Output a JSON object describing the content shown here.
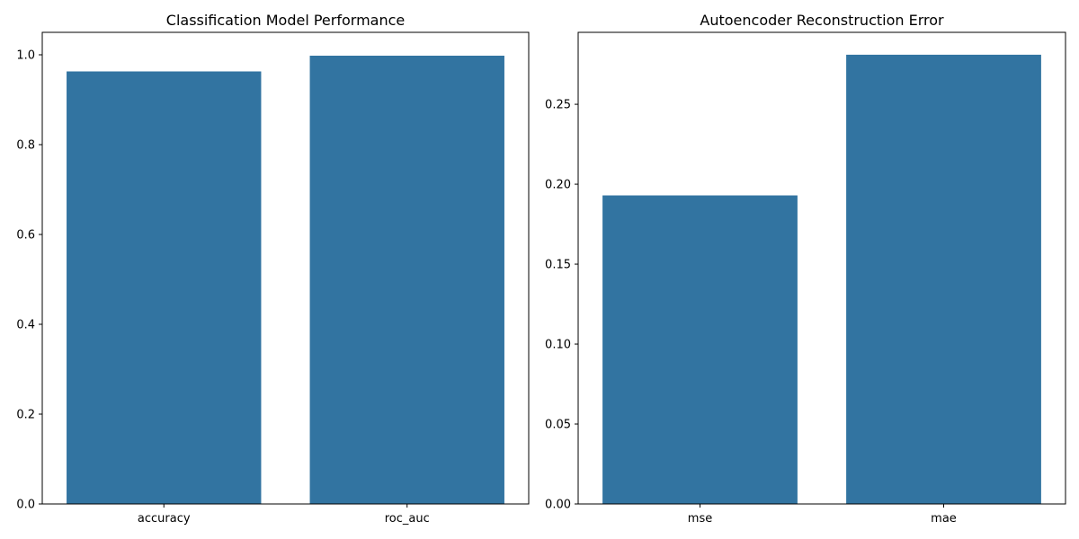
{
  "chart_data": [
    {
      "type": "bar",
      "title": "Classification Model Performance",
      "xlabel": "",
      "ylabel": "",
      "categories": [
        "accuracy",
        "roc_auc"
      ],
      "values": [
        0.963,
        0.998
      ],
      "ylim": [
        0,
        1.05
      ],
      "yticks": [
        0.0,
        0.2,
        0.4,
        0.6,
        0.8,
        1.0
      ],
      "ytick_labels": [
        "0.0",
        "0.2",
        "0.4",
        "0.6",
        "0.8",
        "1.0"
      ],
      "color": "#3274a1",
      "grid": false
    },
    {
      "type": "bar",
      "title": "Autoencoder Reconstruction Error",
      "xlabel": "",
      "ylabel": "",
      "categories": [
        "mse",
        "mae"
      ],
      "values": [
        0.193,
        0.281
      ],
      "ylim": [
        0,
        0.295
      ],
      "yticks": [
        0.0,
        0.05,
        0.1,
        0.15,
        0.2,
        0.25
      ],
      "ytick_labels": [
        "0.00",
        "0.05",
        "0.10",
        "0.15",
        "0.20",
        "0.25"
      ],
      "color": "#3274a1",
      "grid": false
    }
  ]
}
